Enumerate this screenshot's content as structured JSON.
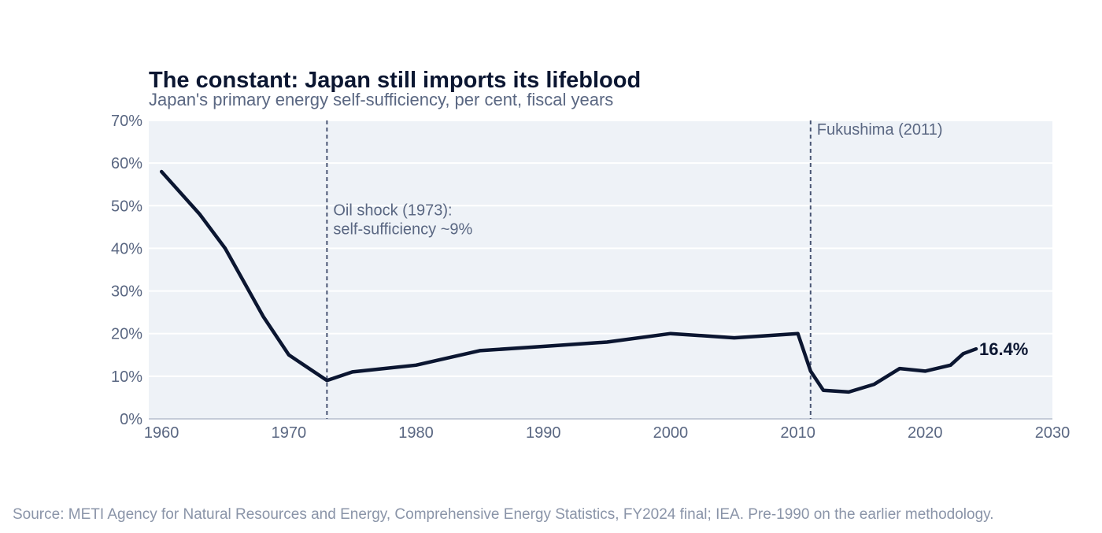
{
  "chart_data": {
    "type": "line",
    "title": "The constant: Japan still imports its lifeblood",
    "subtitle": "Japan's primary energy self-sufficiency, per cent, fiscal years",
    "xlabel": "",
    "ylabel": "",
    "xlim": [
      1959,
      2030
    ],
    "ylim": [
      0,
      70
    ],
    "x_ticks": [
      1960,
      1970,
      1980,
      1990,
      2000,
      2010,
      2020,
      2030
    ],
    "y_ticks": [
      0,
      10,
      20,
      30,
      40,
      50,
      60,
      70
    ],
    "y_tick_suffix": "%",
    "grid": "horizontal",
    "colors": {
      "line": "#0b1631",
      "plot_bg": "#eef2f7",
      "grid": "#ffffff",
      "annotation": "#4a5674",
      "text_muted": "#5a6782"
    },
    "series": [
      {
        "x": [
          1960,
          1963,
          1965,
          1968,
          1970,
          1973,
          1975,
          1980,
          1985,
          1990,
          1995,
          2000,
          2005,
          2010,
          2011,
          2012,
          2014,
          2016,
          2018,
          2020,
          2022,
          2023,
          2024
        ],
        "values": [
          58,
          48,
          40,
          24,
          15,
          9,
          11,
          12.6,
          16,
          17,
          18,
          20,
          19,
          20,
          11.2,
          6.7,
          6.3,
          8.1,
          11.8,
          11.2,
          12.6,
          15.3,
          16.4
        ]
      }
    ],
    "end_label": "16.4%",
    "annotations": [
      {
        "x": 1973,
        "lines": [
          "Oil shock (1973):",
          "self-sufficiency ~9%"
        ],
        "label_y": 49
      },
      {
        "x": 2011,
        "lines": [
          "Fukushima (2011)"
        ],
        "label_y": 68
      }
    ],
    "source": "Source: METI Agency for Natural Resources and Energy, Comprehensive Energy Statistics, FY2024 final; IEA. Pre-1990 on the earlier methodology."
  }
}
